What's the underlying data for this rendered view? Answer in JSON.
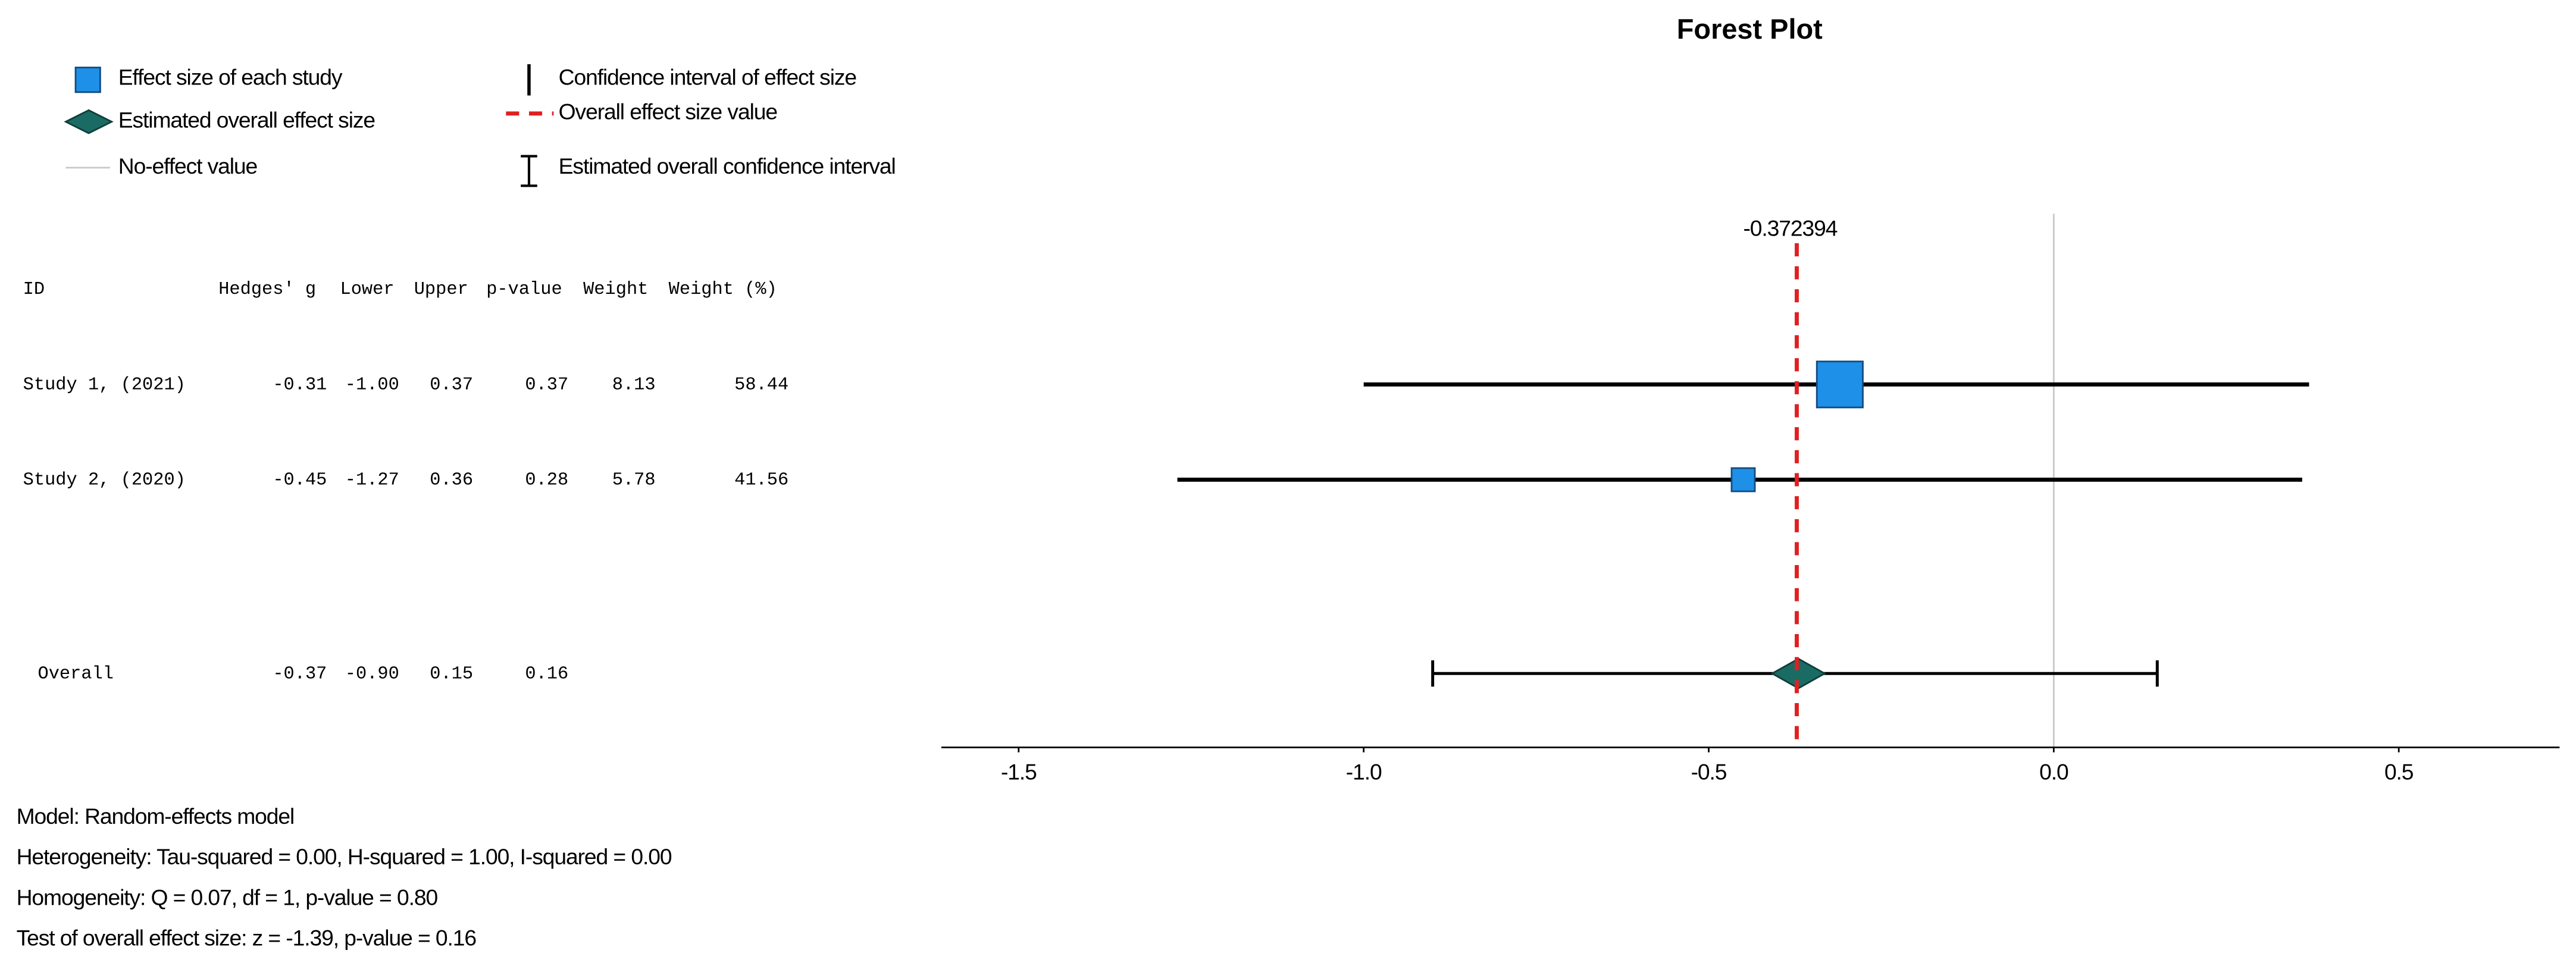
{
  "chart_data": {
    "type": "forest",
    "title": "Forest Plot",
    "legend": [
      "Effect size of each study",
      "Estimated overall effect size",
      "No-effect value",
      "Confidence interval of effect size",
      "Overall effect size value",
      "Estimated overall confidence interval"
    ],
    "columns": [
      "ID",
      "Hedges' g",
      "Lower",
      "Upper",
      "p-value",
      "Weight",
      "Weight (%)"
    ],
    "studies": [
      {
        "id": "Study 1, (2021)",
        "g": -0.31,
        "lower": -1,
        "upper": 0.37,
        "p_value": 0.37,
        "weight": 8.13,
        "weight_pct": 58.44,
        "value_labels": {
          "lower": "-1.00"
        }
      },
      {
        "id": "Study 2, (2020)",
        "g": -0.45,
        "lower": -1.27,
        "upper": 0.36,
        "p_value": 0.28,
        "weight": 5.78,
        "weight_pct": 41.56
      }
    ],
    "overall": {
      "id": "Overall",
      "g": -0.37,
      "lower": -0.9,
      "upper": 0.15,
      "p_value": 0.16,
      "value_labels": {
        "lower": "-0.90"
      }
    },
    "overall_effect": {
      "value": -0.372394,
      "label": "-0.372394"
    },
    "no_effect": 0,
    "xlim": [
      -1.612,
      0.733
    ],
    "xticks": [
      -1.5,
      {
        "value": -1,
        "label": "-1.0"
      },
      -0.5,
      {
        "value": 0,
        "label": "0.0"
      },
      0.5
    ],
    "colors": {
      "study": "#1e90e8",
      "overall": "#1a6b64",
      "overall_line": "#e02020",
      "no_effect": "#c8c8c8"
    },
    "notes": [
      "Model: Random-effects model",
      "Heterogeneity: Tau-squared = 0.00, H-squared = 1.00, I-squared = 0.00",
      "Homogeneity: Q = 0.07, df = 1, p-value = 0.80",
      "Test of overall effect size: z = -1.39, p-value = 0.16"
    ]
  }
}
